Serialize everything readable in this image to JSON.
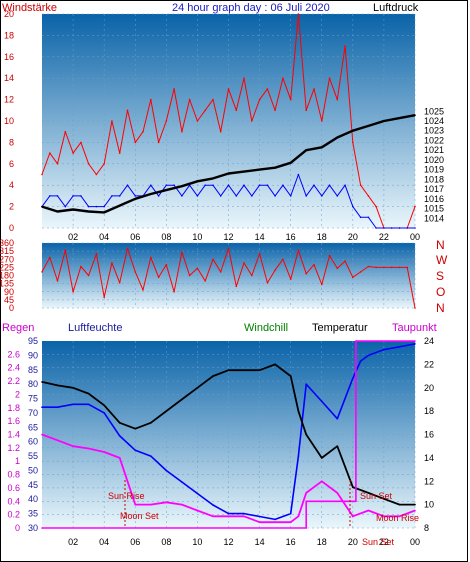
{
  "header": {
    "left_label": "Windstärke",
    "title": "24 hour graph day : 06 Juli 2020",
    "right_label": "Luftdruck"
  },
  "legend": {
    "regen": "Regen",
    "luftfeuchte": "Luftfeuchte",
    "windchill": "Windchill",
    "temperatur": "Temperatur",
    "taupunkt": "Taupunkt"
  },
  "wind_dir_labels": [
    "N",
    "W",
    "S",
    "O",
    "N"
  ],
  "events": {
    "sun_rise": "Sun Rise",
    "moon_set": "Moon Set",
    "sun_set": "Sun Set",
    "moon_rise": "Moon Rise",
    "sun_set_short": "Sun Set"
  },
  "colors": {
    "plot_top": "#0a63a8",
    "plot_bottom": "#eaf6fb",
    "gust": "#ff0000",
    "wind": "#0000ff",
    "pressure": "#000000",
    "direction": "#ff0000",
    "humidity": "#0000ff",
    "temperature": "#000000",
    "dewpoint": "#ff00ff",
    "rain": "#ff00ff",
    "windchill": "#008000"
  },
  "chart_data": [
    {
      "type": "line",
      "title": "24 hour graph day : 06 Juli 2020",
      "x_ticks": [
        "02",
        "04",
        "06",
        "08",
        "10",
        "12",
        "14",
        "16",
        "18",
        "20",
        "22",
        "00"
      ],
      "xlim": [
        0,
        24
      ],
      "ylabel": "Windstärke",
      "ylim": [
        0,
        20
      ],
      "y_ticks": [
        0,
        2,
        4,
        6,
        8,
        10,
        12,
        14,
        16,
        18,
        20
      ],
      "y2label": "Luftdruck",
      "y2lim": [
        1013,
        1035
      ],
      "y2_ticks": [
        1014,
        1015,
        1016,
        1017,
        1018,
        1019,
        1020,
        1021,
        1022,
        1023,
        1024,
        1025
      ],
      "series": [
        {
          "name": "Windböen",
          "axis": "left",
          "x": [
            0,
            0.5,
            1,
            1.5,
            2,
            2.5,
            3,
            3.5,
            4,
            4.5,
            5,
            5.5,
            6,
            6.5,
            7,
            7.5,
            8,
            8.5,
            9,
            9.5,
            10,
            10.5,
            11,
            11.5,
            12,
            12.5,
            13,
            13.5,
            14,
            14.5,
            15,
            15.5,
            16,
            16.5,
            17,
            17.5,
            18,
            18.5,
            19,
            19.5,
            20,
            20.5,
            21,
            21.5,
            22,
            22.5,
            23,
            23.5,
            24
          ],
          "values": [
            5,
            7,
            6,
            9,
            7,
            8,
            6,
            5,
            6,
            10,
            7,
            11,
            8,
            9,
            12,
            8,
            10,
            13,
            9,
            12,
            10,
            11,
            12,
            9,
            13,
            11,
            14,
            10,
            12,
            13,
            11,
            14,
            12,
            20,
            11,
            13,
            10,
            14,
            12,
            17,
            8,
            4,
            3,
            2,
            0,
            0,
            0,
            0,
            2
          ]
        },
        {
          "name": "Windstärke",
          "axis": "left",
          "x": [
            0,
            0.5,
            1,
            1.5,
            2,
            2.5,
            3,
            3.5,
            4,
            4.5,
            5,
            5.5,
            6,
            6.5,
            7,
            7.5,
            8,
            8.5,
            9,
            9.5,
            10,
            10.5,
            11,
            11.5,
            12,
            12.5,
            13,
            13.5,
            14,
            14.5,
            15,
            15.5,
            16,
            16.5,
            17,
            17.5,
            18,
            18.5,
            19,
            19.5,
            20,
            20.5,
            21,
            21.5,
            22,
            22.5,
            23,
            23.5,
            24
          ],
          "values": [
            2,
            3,
            3,
            2,
            3,
            3,
            2,
            2,
            2,
            3,
            3,
            4,
            3,
            3,
            4,
            3,
            4,
            4,
            3,
            4,
            3,
            4,
            4,
            3,
            4,
            3,
            4,
            3,
            4,
            4,
            3,
            4,
            3,
            5,
            3,
            4,
            3,
            4,
            3,
            4,
            2,
            1,
            1,
            0,
            0,
            0,
            0,
            0,
            0
          ]
        },
        {
          "name": "Luftdruck",
          "axis": "right",
          "x": [
            0,
            1,
            2,
            3,
            4,
            5,
            6,
            7,
            8,
            9,
            10,
            11,
            12,
            13,
            14,
            15,
            16,
            17,
            18,
            19,
            20,
            21,
            22,
            23,
            24
          ],
          "values": [
            1015.2,
            1014.7,
            1014.9,
            1014.7,
            1014.6,
            1015.3,
            1016.0,
            1016.5,
            1016.9,
            1017.3,
            1017.8,
            1018.1,
            1018.6,
            1018.8,
            1019.0,
            1019.2,
            1019.7,
            1021.0,
            1021.3,
            1022.3,
            1023.0,
            1023.5,
            1024.0,
            1024.3,
            1024.6
          ]
        }
      ]
    },
    {
      "type": "line",
      "title": "",
      "x_ticks": [
        "02",
        "04",
        "06",
        "08",
        "10",
        "12",
        "14",
        "16",
        "18",
        "20",
        "22",
        "00"
      ],
      "xlim": [
        0,
        24
      ],
      "ylim": [
        0,
        360
      ],
      "y_ticks": [
        0,
        45,
        90,
        135,
        180,
        225,
        270,
        315,
        360
      ],
      "series": [
        {
          "name": "Windrichtung",
          "x": [
            0,
            0.5,
            1,
            1.5,
            2,
            2.5,
            3,
            3.5,
            4,
            4.5,
            5,
            5.5,
            6,
            6.5,
            7,
            7.5,
            8,
            8.5,
            9,
            9.5,
            10,
            10.5,
            11,
            11.5,
            12,
            12.5,
            13,
            13.5,
            14,
            14.5,
            15,
            15.5,
            16,
            16.5,
            17,
            17.5,
            18,
            18.5,
            19,
            19.5,
            20,
            20.5,
            21,
            21.5,
            22,
            22.5,
            23,
            23.5,
            24
          ],
          "values": [
            200,
            280,
            150,
            320,
            90,
            230,
            180,
            300,
            60,
            250,
            140,
            330,
            200,
            100,
            280,
            170,
            240,
            90,
            310,
            180,
            220,
            150,
            270,
            200,
            330,
            120,
            250,
            180,
            300,
            140,
            210,
            270,
            160,
            320,
            190,
            240,
            130,
            290,
            220,
            260,
            170,
            200,
            230,
            225,
            225,
            225,
            225,
            225,
            0
          ]
        }
      ]
    },
    {
      "type": "line",
      "title": "",
      "x_ticks": [
        "02",
        "04",
        "06",
        "08",
        "10",
        "12",
        "14",
        "16",
        "18",
        "20",
        "22",
        "00"
      ],
      "xlim": [
        0,
        24
      ],
      "ylabel": "Regen",
      "ylim": [
        0,
        2.8
      ],
      "y_ticks": [
        0,
        0.2,
        0.4,
        0.6,
        0.8,
        1,
        1.2,
        1.4,
        1.6,
        1.8,
        2,
        2.2,
        2.4,
        2.6
      ],
      "y2label": "Luftfeuchte",
      "y2lim": [
        30,
        95
      ],
      "y2_ticks": [
        30,
        35,
        40,
        45,
        50,
        55,
        60,
        65,
        70,
        75,
        80,
        85,
        90,
        95
      ],
      "y3label": "Temperatur",
      "y3lim": [
        8,
        24
      ],
      "y3_ticks": [
        8,
        10,
        12,
        14,
        16,
        18,
        20,
        22,
        24
      ],
      "series": [
        {
          "name": "Luftfeuchte",
          "axis": "middle",
          "x": [
            0,
            1,
            2,
            3,
            4,
            5,
            6,
            7,
            8,
            9,
            10,
            11,
            12,
            13,
            14,
            15,
            16,
            16.5,
            17,
            18,
            19,
            20,
            20.5,
            21,
            22,
            23,
            24
          ],
          "values": [
            72,
            72,
            73,
            73,
            70,
            62,
            57,
            55,
            50,
            46,
            42,
            38,
            35,
            35,
            34,
            33,
            35,
            55,
            80,
            74,
            68,
            82,
            88,
            90,
            92,
            93,
            94
          ]
        },
        {
          "name": "Temperatur",
          "axis": "right",
          "x": [
            0,
            1,
            2,
            3,
            4,
            5,
            6,
            7,
            8,
            9,
            10,
            11,
            12,
            13,
            14,
            15,
            16,
            16.5,
            17,
            18,
            19,
            20,
            21,
            22,
            23,
            24
          ],
          "values": [
            20.5,
            20.2,
            20,
            19.5,
            18.5,
            17,
            16.5,
            17,
            18,
            19,
            20,
            21,
            21.5,
            21.5,
            21.5,
            22,
            21,
            18,
            16,
            14,
            15,
            11.5,
            11,
            10.5,
            10,
            10
          ]
        },
        {
          "name": "Taupunkt",
          "axis": "right",
          "x": [
            0,
            1,
            2,
            3,
            4,
            5,
            6,
            7,
            8,
            9,
            10,
            11,
            12,
            13,
            14,
            15,
            16,
            16.5,
            17,
            18,
            19,
            20,
            21,
            22,
            23,
            24
          ],
          "values": [
            16,
            15.5,
            15,
            14.8,
            14.5,
            14,
            10,
            10,
            10.2,
            10,
            9.5,
            9,
            9,
            9,
            8.5,
            8.5,
            8.5,
            9,
            11,
            12,
            11,
            9,
            9.5,
            9,
            9,
            9.5
          ]
        },
        {
          "name": "Regen",
          "axis": "left",
          "x": [
            0,
            17,
            17,
            20.2,
            20.2,
            24
          ],
          "values": [
            0,
            0,
            0.4,
            0.4,
            2.8,
            2.8
          ]
        }
      ]
    }
  ]
}
